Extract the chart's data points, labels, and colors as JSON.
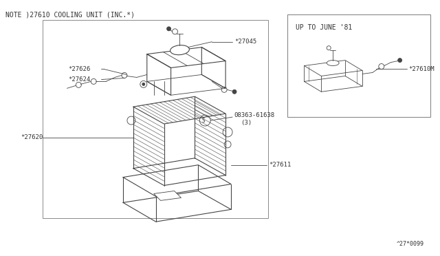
{
  "bg_color": "#ffffff",
  "line_color": "#444444",
  "text_color": "#333333",
  "note_text": "NOTE )27610 COOLING UNIT (INC.*)",
  "inset_title": "UP TO JUNE '81",
  "diagram_code": "^27*0099",
  "fig_width": 6.4,
  "fig_height": 3.72,
  "dpi": 100
}
